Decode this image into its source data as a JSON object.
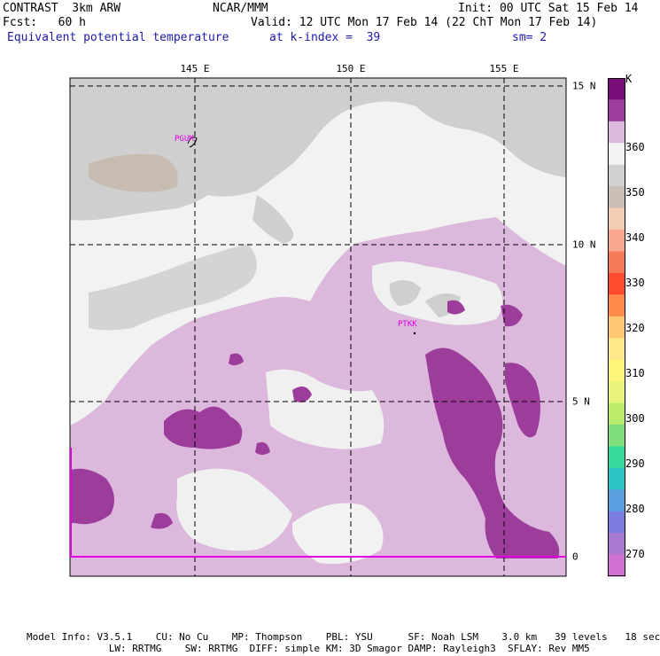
{
  "header": {
    "line1_left": "CONTRAST  3km ARW",
    "line1_center": "NCAR/MMM",
    "line1_right": "Init: 00 UTC Sat 15 Feb 14",
    "line2_left": "Fcst:   60 h",
    "line2_right": "Valid: 12 UTC Mon 17 Feb 14 (22 ChT Mon 17 Feb 14)",
    "line3_left": "Equivalent potential temperature",
    "line3_center": "at k-index =  39",
    "line3_right": "sm= 2"
  },
  "map": {
    "lon_labels": [
      "145 E",
      "150 E",
      "155 E"
    ],
    "lat_labels": [
      "15 N",
      "10 N",
      "5 N",
      "0"
    ],
    "stations": [
      "PGUM",
      "PTKK"
    ]
  },
  "colorbar": {
    "unit": "K",
    "labels": [
      "360",
      "350",
      "340",
      "330",
      "320",
      "310",
      "300",
      "290",
      "280",
      "270"
    ],
    "colors": [
      "#7a0f7a",
      "#9c3d9c",
      "#dcb8dc",
      "#f2f2f2",
      "#d0d0d0",
      "#c9bfb5",
      "#f4cdb5",
      "#f9a78f",
      "#f47a5a",
      "#ff4a2e",
      "#ff8a4a",
      "#ffc870",
      "#ffe88a",
      "#fff57a",
      "#e8f57a",
      "#b8ec6a",
      "#7ee07a",
      "#36d99a",
      "#2ec4c4",
      "#5aa0e0",
      "#7c7ce0",
      "#a87ad0",
      "#d070d0"
    ]
  },
  "footer": {
    "line1": "Model Info: V3.5.1    CU: No Cu    MP: Thompson    PBL: YSU      SF: Noah LSM    3.0 km   39 levels   18 sec",
    "line2": "              LW: RRTMG    SW: RRTMG  DIFF: simple KM: 3D Smagor DAMP: Rayleigh3  SFLAY: Rev MM5"
  }
}
